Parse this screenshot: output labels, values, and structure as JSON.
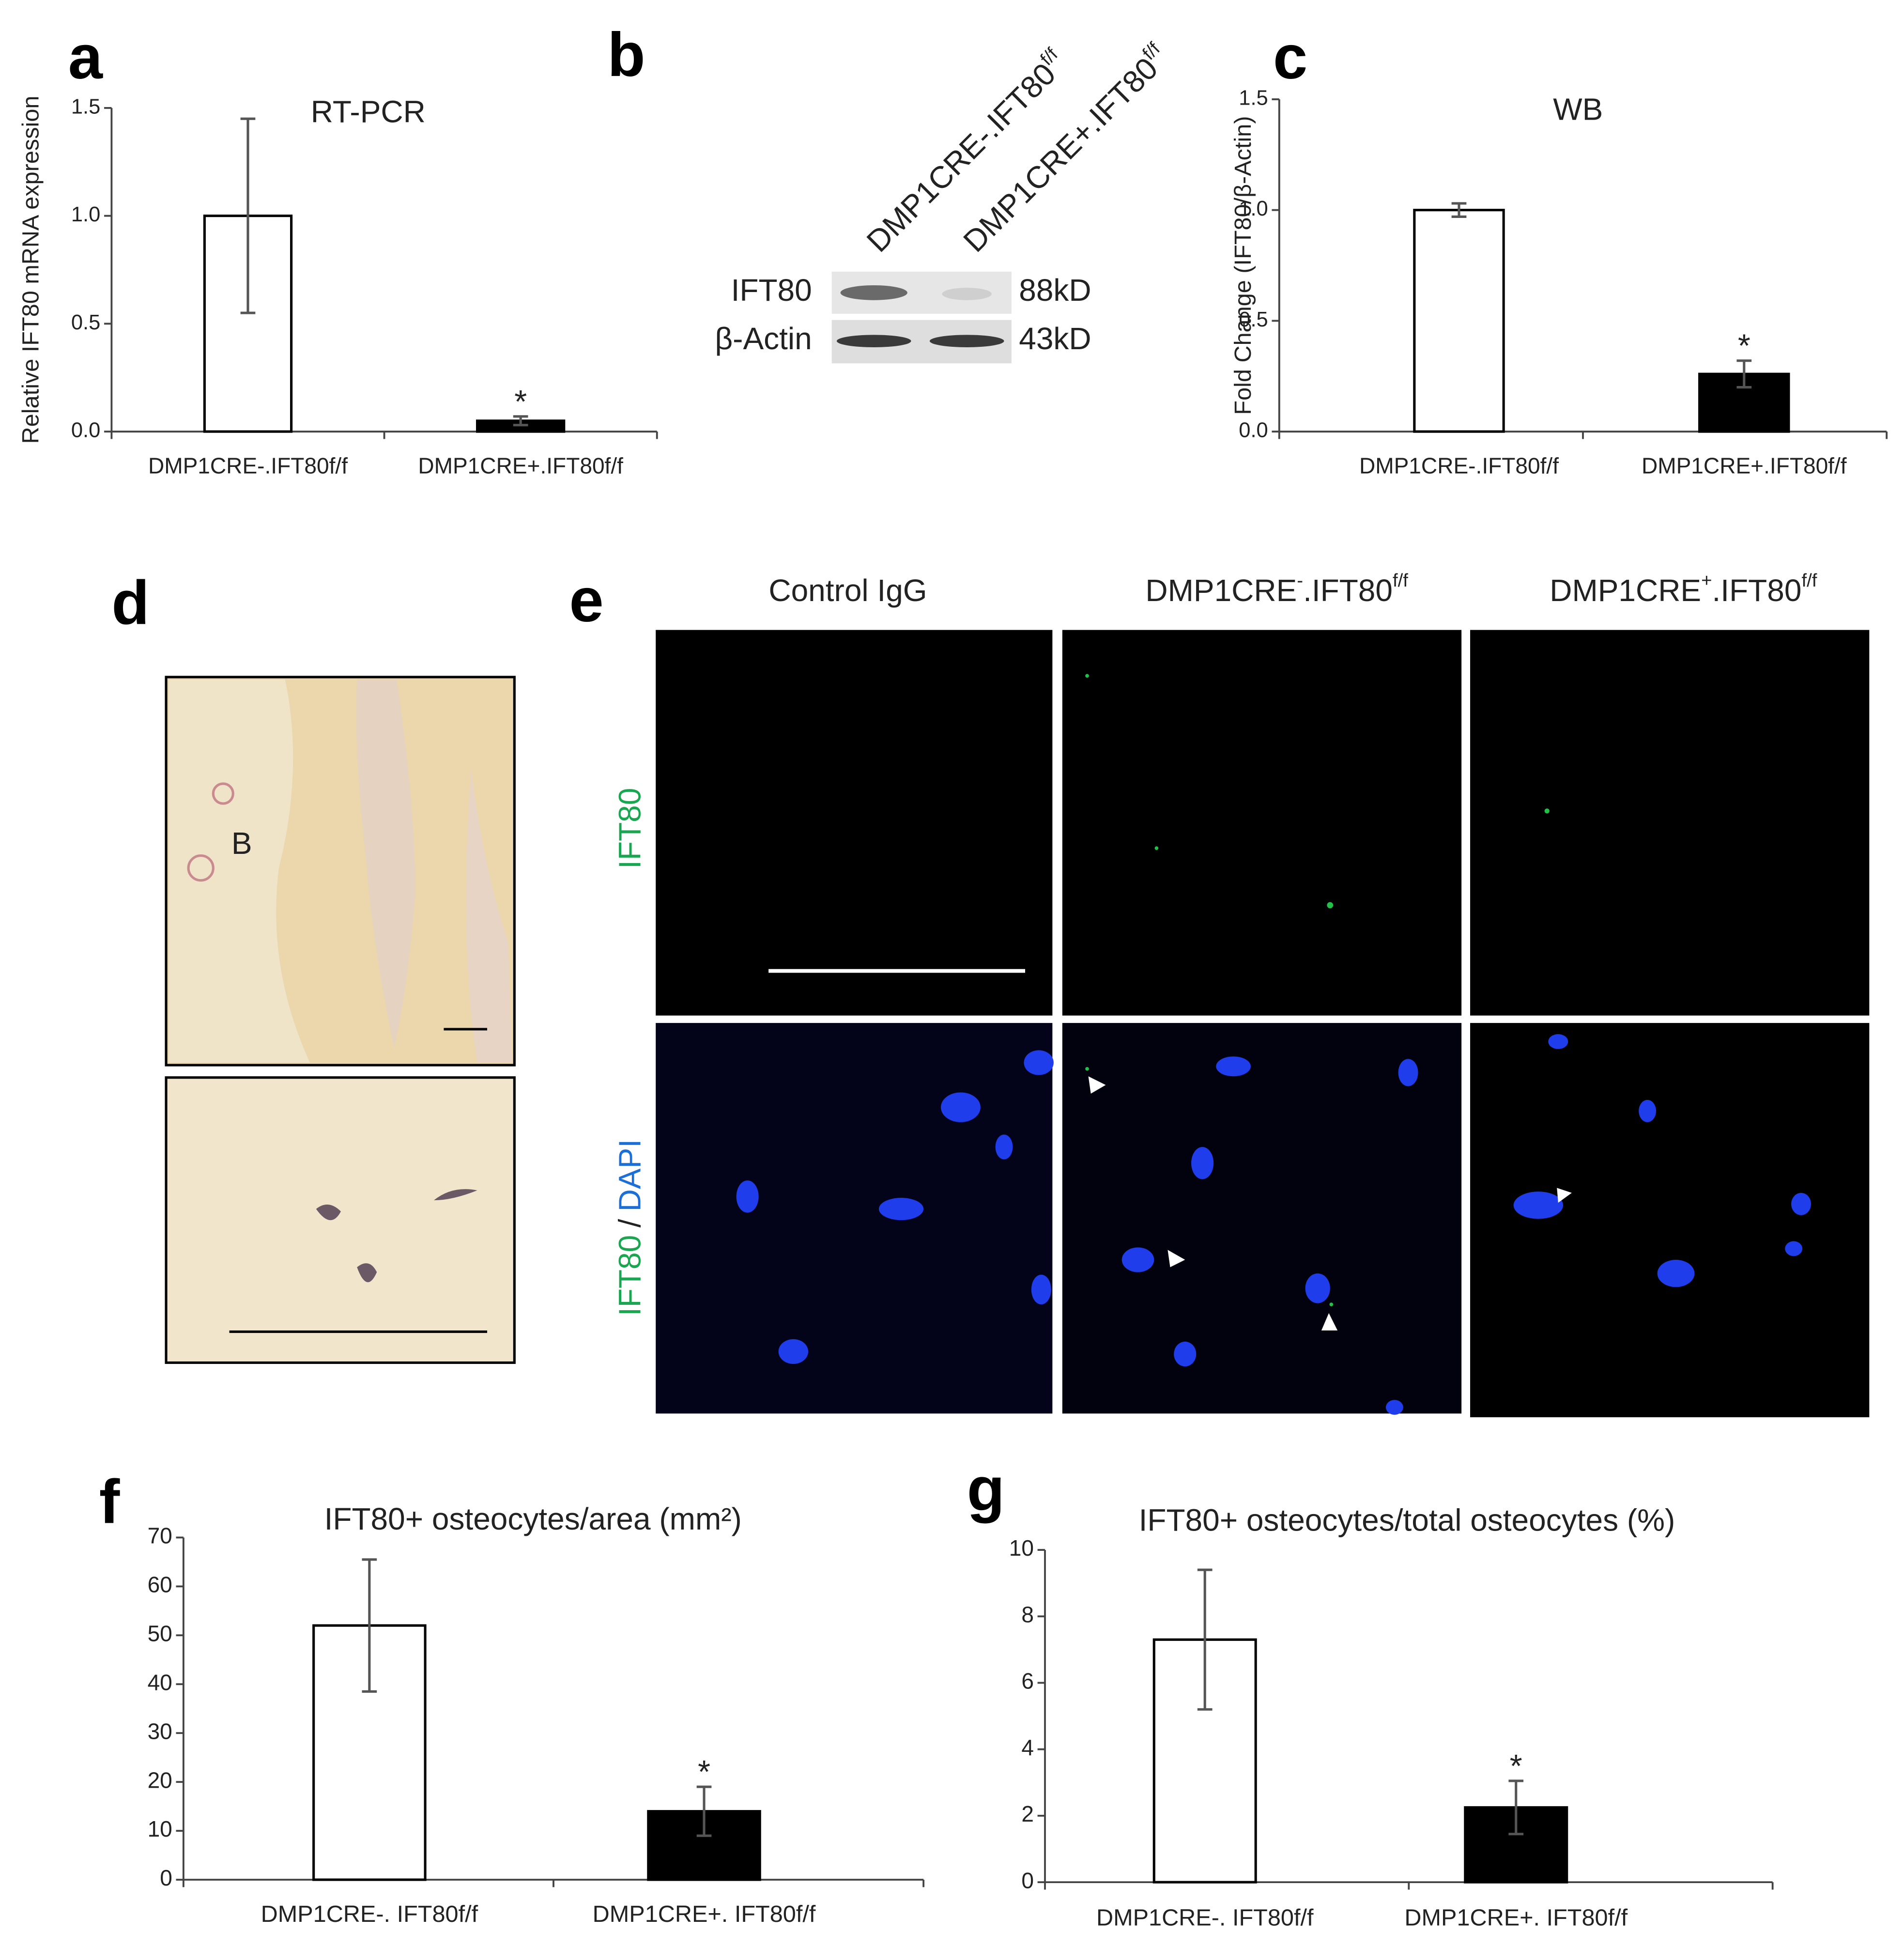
{
  "chart_data": [
    {
      "type": "bar",
      "panel": "a",
      "title": "RT-PCR",
      "ylabel": "Relative IFT80 mRNA expression",
      "categories": [
        "DMP1CRE-.IFT80f/f",
        "DMP1CRE+.IFT80f/f"
      ],
      "values": [
        1.0,
        0.05
      ],
      "errors": [
        0.45,
        0.02
      ],
      "colors": [
        "#ffffff",
        "#000000"
      ],
      "significance": [
        null,
        "*"
      ],
      "ylim": [
        0,
        1.5
      ],
      "yticks": [
        {
          "value": 0,
          "label": "0.0"
        },
        {
          "value": 0.5,
          "label": "0.5"
        },
        {
          "value": 1,
          "label": "1.0"
        },
        {
          "value": 1.5,
          "label": "1.5"
        }
      ]
    },
    {
      "type": "bar",
      "panel": "c",
      "title": "WB",
      "ylabel": "Fold Change (IFT80/β-Actin)",
      "categories": [
        "DMP1CRE-.IFT80f/f",
        "DMP1CRE+.IFT80f/f"
      ],
      "values": [
        1.0,
        0.26
      ],
      "errors": [
        0.03,
        0.06
      ],
      "colors": [
        "#ffffff",
        "#000000"
      ],
      "significance": [
        null,
        "*"
      ],
      "ylim": [
        0,
        1.5
      ],
      "yticks": [
        {
          "value": 0,
          "label": "0.0"
        },
        {
          "value": 0.5,
          "label": "0.5"
        },
        {
          "value": 1,
          "label": "1.0"
        },
        {
          "value": 1.5,
          "label": "1.5"
        }
      ]
    },
    {
      "type": "bar",
      "panel": "f",
      "title": "IFT80+ osteocytes/area (mm²)",
      "categories": [
        "DMP1CRE-. IFT80f/f",
        "DMP1CRE+. IFT80f/f"
      ],
      "values": [
        52,
        14
      ],
      "errors": [
        13.5,
        5
      ],
      "colors": [
        "#ffffff",
        "#000000"
      ],
      "significance": [
        null,
        "*"
      ],
      "ylim": [
        0,
        70
      ],
      "yticks": [
        0,
        10,
        20,
        30,
        40,
        50,
        60,
        70
      ]
    },
    {
      "type": "bar",
      "panel": "g",
      "title": "IFT80+ osteocytes/total osteocytes (%)",
      "categories": [
        "DMP1CRE-. IFT80f/f",
        "DMP1CRE+. IFT80f/f"
      ],
      "values": [
        7.3,
        2.25
      ],
      "errors": [
        2.1,
        0.8
      ],
      "colors": [
        "#ffffff",
        "#000000"
      ],
      "significance": [
        null,
        "*"
      ],
      "ylim": [
        0,
        10
      ],
      "yticks": [
        0,
        2,
        4,
        6,
        8,
        10
      ]
    }
  ],
  "blot": {
    "panel": "b",
    "lanes": [
      [
        "DMP1CRE-.IFT80",
        "f/f"
      ],
      [
        "DMP1CRE+.IFT80",
        "f/f"
      ]
    ],
    "rows": [
      {
        "protein": "IFT80",
        "size": "88kD"
      },
      {
        "protein": "β-Actin",
        "size": "43kD"
      }
    ]
  },
  "histology": {
    "panel": "d",
    "label": "B"
  },
  "immunofluorescence": {
    "panel": "e",
    "columns": [
      [
        "Control IgG"
      ],
      [
        "DMP1CRE",
        "-",
        ".IFT80",
        "f/f"
      ],
      [
        "DMP1CRE",
        "+",
        ".IFT80",
        "f/f"
      ]
    ],
    "rows": [
      [
        "IFT80"
      ],
      [
        "IFT80",
        "/",
        "DAPI"
      ]
    ]
  }
}
